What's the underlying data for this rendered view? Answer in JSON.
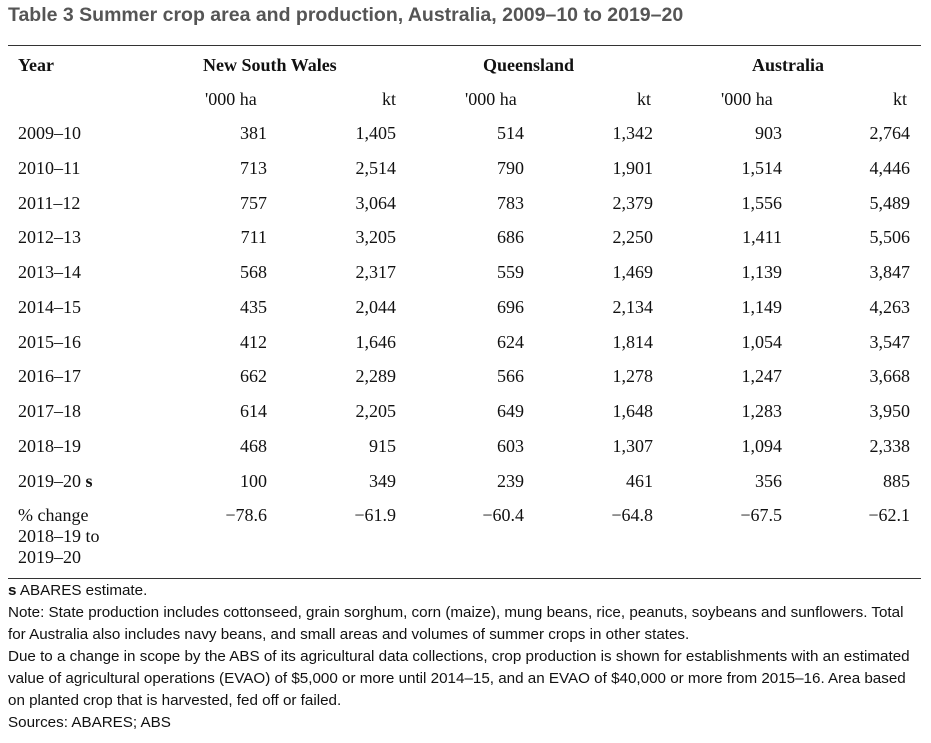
{
  "title": "Table 3 Summer crop area and production, Australia, 2009–10 to 2019–20",
  "table": {
    "year_header": "Year",
    "groups": [
      "New South Wales",
      "Queensland",
      "Australia"
    ],
    "units": [
      "'000 ha",
      "kt",
      "'000 ha",
      "kt",
      "'000 ha",
      "kt"
    ],
    "rows": [
      {
        "year": "2009–10",
        "flag": "",
        "values": [
          "381",
          "1,405",
          "514",
          "1,342",
          "903",
          "2,764"
        ]
      },
      {
        "year": "2010–11",
        "flag": "",
        "values": [
          "713",
          "2,514",
          "790",
          "1,901",
          "1,514",
          "4,446"
        ]
      },
      {
        "year": "2011–12",
        "flag": "",
        "values": [
          "757",
          "3,064",
          "783",
          "2,379",
          "1,556",
          "5,489"
        ]
      },
      {
        "year": "2012–13",
        "flag": "",
        "values": [
          "711",
          "3,205",
          "686",
          "2,250",
          "1,411",
          "5,506"
        ]
      },
      {
        "year": "2013–14",
        "flag": "",
        "values": [
          "568",
          "2,317",
          "559",
          "1,469",
          "1,139",
          "3,847"
        ]
      },
      {
        "year": "2014–15",
        "flag": "",
        "values": [
          "435",
          "2,044",
          "696",
          "2,134",
          "1,149",
          "4,263"
        ]
      },
      {
        "year": "2015–16",
        "flag": "",
        "values": [
          "412",
          "1,646",
          "624",
          "1,814",
          "1,054",
          "3,547"
        ]
      },
      {
        "year": "2016–17",
        "flag": "",
        "values": [
          "662",
          "2,289",
          "566",
          "1,278",
          "1,247",
          "3,668"
        ]
      },
      {
        "year": "2017–18",
        "flag": "",
        "values": [
          "614",
          "2,205",
          "649",
          "1,648",
          "1,283",
          "3,950"
        ]
      },
      {
        "year": "2018–19",
        "flag": "",
        "values": [
          "468",
          "915",
          "603",
          "1,307",
          "1,094",
          "2,338"
        ]
      },
      {
        "year": "2019–20",
        "flag": "s",
        "values": [
          "100",
          "349",
          "239",
          "461",
          "356",
          "885"
        ]
      }
    ],
    "change_row": {
      "label_lines": [
        "% change",
        "2018–19 to",
        "2019–20"
      ],
      "values": [
        "−78.6",
        "−61.9",
        "−60.4",
        "−64.8",
        "−67.5",
        "−62.1"
      ]
    }
  },
  "notes": {
    "estimate_flag": "s",
    "estimate_text": "ABARES estimate.",
    "note1": "Note: State production includes cottonseed, grain sorghum, corn (maize), mung beans, rice, peanuts, soybeans and sunflowers. Total for Australia also includes navy beans, and small areas and volumes of summer crops in other states.",
    "note2": "Due to a change in scope by the ABS of its agricultural data collections, crop production is shown for establishments with an estimated value of agricultural operations (EVAO) of $5,000 or more until 2014–15, and an EVAO of $40,000 or more from 2015–16. Area based on planted crop that is harvested, fed off or failed.",
    "sources": "Sources: ABARES; ABS"
  }
}
